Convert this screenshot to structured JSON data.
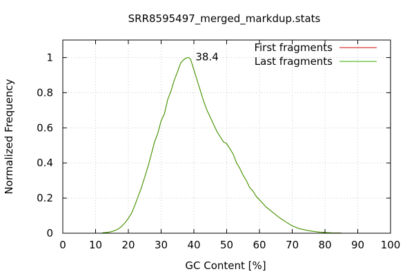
{
  "chart_data": {
    "type": "line",
    "title": "SRR8595497_merged_markdup.stats",
    "xlabel": "GC Content [%]",
    "ylabel": "Normalized Frequency",
    "xlim": [
      0,
      100
    ],
    "ylim": [
      0,
      1.1
    ],
    "x_ticks": [
      0,
      10,
      20,
      30,
      40,
      50,
      60,
      70,
      80,
      90,
      100
    ],
    "y_ticks": [
      0,
      0.2,
      0.4,
      0.6,
      0.8,
      1
    ],
    "grid": true,
    "legend_position": "top-right",
    "annotations": [
      {
        "text": "38.4",
        "x": 38.4,
        "y": 1.0
      }
    ],
    "series": [
      {
        "name": "First fragments",
        "color": "#cc0000",
        "x": [
          12,
          14,
          15,
          16,
          17,
          18,
          19,
          20,
          21,
          22,
          23,
          24,
          25,
          26,
          27,
          28,
          29,
          30,
          31,
          32,
          33,
          34,
          35,
          36,
          37,
          38,
          38.4,
          39,
          40,
          41,
          42,
          43,
          44,
          45,
          46,
          47,
          48,
          49,
          50,
          51,
          52,
          53,
          54,
          55,
          56,
          57,
          58,
          59,
          60,
          62,
          64,
          66,
          68,
          70,
          72,
          75,
          78,
          80,
          82,
          85
        ],
        "y": [
          0.002,
          0.006,
          0.01,
          0.016,
          0.025,
          0.04,
          0.06,
          0.085,
          0.115,
          0.16,
          0.21,
          0.26,
          0.32,
          0.38,
          0.45,
          0.52,
          0.57,
          0.64,
          0.68,
          0.76,
          0.81,
          0.87,
          0.92,
          0.97,
          0.99,
          1.0,
          1.0,
          0.99,
          0.93,
          0.87,
          0.81,
          0.75,
          0.7,
          0.66,
          0.62,
          0.58,
          0.55,
          0.52,
          0.51,
          0.48,
          0.45,
          0.4,
          0.37,
          0.33,
          0.3,
          0.26,
          0.24,
          0.21,
          0.19,
          0.15,
          0.12,
          0.09,
          0.065,
          0.042,
          0.027,
          0.014,
          0.007,
          0.004,
          0.002,
          0.001
        ]
      },
      {
        "name": "Last fragments",
        "color": "#33aa00",
        "x": [
          12,
          14,
          15,
          16,
          17,
          18,
          19,
          20,
          21,
          22,
          23,
          24,
          25,
          26,
          27,
          28,
          29,
          30,
          31,
          32,
          33,
          34,
          35,
          36,
          37,
          38,
          38.4,
          39,
          40,
          41,
          42,
          43,
          44,
          45,
          46,
          47,
          48,
          49,
          50,
          51,
          52,
          53,
          54,
          55,
          56,
          57,
          58,
          59,
          60,
          62,
          64,
          66,
          68,
          70,
          72,
          75,
          78,
          80,
          82,
          85
        ],
        "y": [
          0.002,
          0.006,
          0.01,
          0.016,
          0.025,
          0.04,
          0.06,
          0.085,
          0.115,
          0.16,
          0.21,
          0.26,
          0.32,
          0.38,
          0.45,
          0.52,
          0.57,
          0.64,
          0.68,
          0.76,
          0.81,
          0.87,
          0.92,
          0.97,
          0.99,
          1.0,
          1.0,
          0.99,
          0.93,
          0.87,
          0.81,
          0.75,
          0.7,
          0.66,
          0.62,
          0.58,
          0.55,
          0.52,
          0.51,
          0.48,
          0.45,
          0.4,
          0.37,
          0.33,
          0.3,
          0.26,
          0.24,
          0.21,
          0.19,
          0.15,
          0.12,
          0.09,
          0.065,
          0.042,
          0.027,
          0.014,
          0.007,
          0.004,
          0.002,
          0.001
        ]
      }
    ]
  }
}
